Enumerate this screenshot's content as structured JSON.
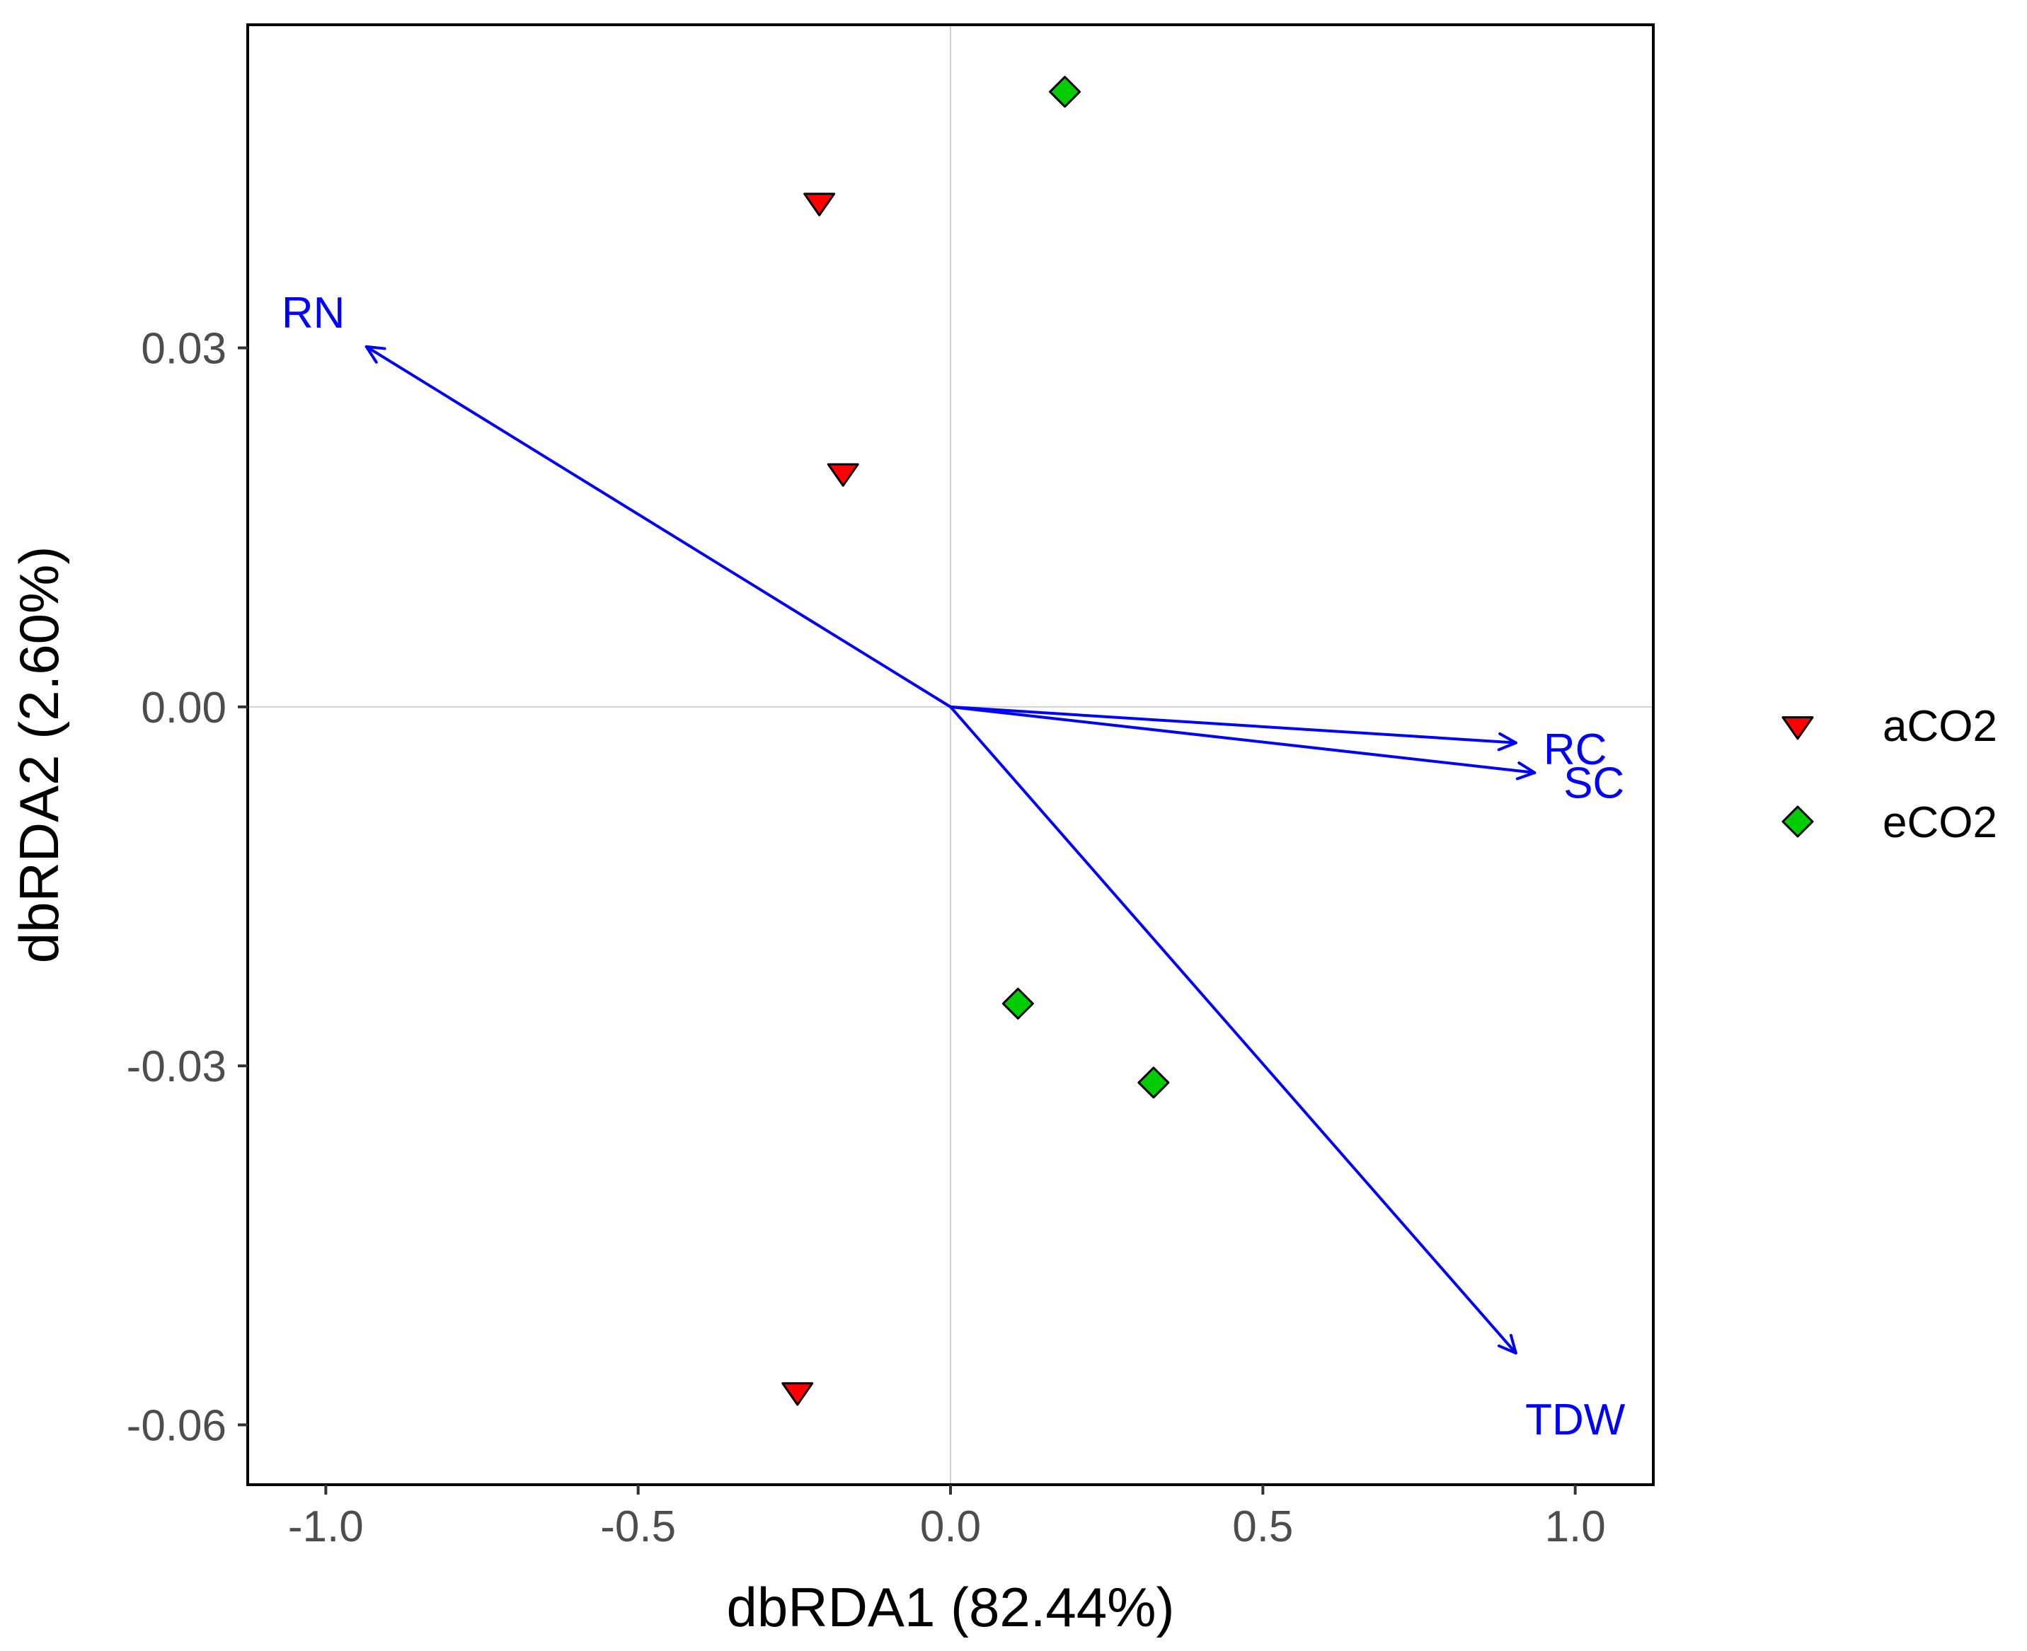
{
  "colors": {
    "background": "#ffffff",
    "panel_border": "#000000",
    "zero_line": "#d0d0d0",
    "tick_text": "#4d4d4d",
    "arrow": "#0000ff",
    "aCO2": "#ff0000",
    "eCO2": "#00cc00",
    "point_outline": "#000000"
  },
  "chart_data": {
    "type": "scatter",
    "title": "",
    "xlabel": "dbRDA1 (82.44%)",
    "ylabel": "dbRDA2 (2.60%)",
    "xlim": [
      -1.125,
      1.125
    ],
    "ylim": [
      -0.065,
      0.057
    ],
    "x_ticks": [
      -1.0,
      -0.5,
      0.0,
      0.5,
      1.0
    ],
    "x_tick_labels": [
      "-1.0",
      "-0.5",
      "0.0",
      "0.5",
      "1.0"
    ],
    "y_ticks": [
      0.03,
      0.0,
      -0.03,
      -0.06
    ],
    "y_tick_labels": [
      "0.03",
      "0.00",
      "-0.03",
      "-0.06"
    ],
    "grid": false,
    "reference_lines": {
      "x": 0.0,
      "y": 0.0
    },
    "legend_placement": "right",
    "series": [
      {
        "name": "aCO2",
        "marker": "triangle-down",
        "color_key": "aCO2",
        "points": [
          {
            "x": -0.21,
            "y": 0.0422
          },
          {
            "x": -0.172,
            "y": 0.0196
          },
          {
            "x": -0.245,
            "y": -0.0572
          }
        ]
      },
      {
        "name": "eCO2",
        "marker": "diamond",
        "color_key": "eCO2",
        "points": [
          {
            "x": 0.183,
            "y": 0.0514
          },
          {
            "x": 0.108,
            "y": -0.0248
          },
          {
            "x": 0.325,
            "y": -0.0314
          }
        ]
      }
    ],
    "arrows": [
      {
        "name": "RN",
        "x": -0.935,
        "y": 0.0301,
        "label_x": -1.02,
        "label_y": 0.033
      },
      {
        "name": "RC",
        "x": 0.905,
        "y": -0.003,
        "label_x": 1.0,
        "label_y": -0.0035
      },
      {
        "name": "SC",
        "x": 0.935,
        "y": -0.0055,
        "label_x": 1.03,
        "label_y": -0.0063
      },
      {
        "name": "TDW",
        "x": 0.905,
        "y": -0.054,
        "label_x": 1.0,
        "label_y": -0.0595
      }
    ]
  }
}
